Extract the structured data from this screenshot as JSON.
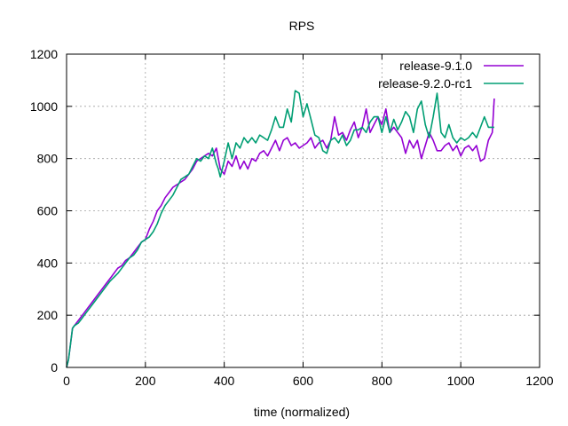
{
  "chart_data": {
    "type": "line",
    "title": "RPS",
    "xlabel": "time (normalized)",
    "ylabel": "",
    "xlim": [
      0,
      1200
    ],
    "ylim": [
      0,
      1200
    ],
    "xticks": [
      0,
      200,
      400,
      600,
      800,
      1000,
      1200
    ],
    "yticks": [
      0,
      200,
      400,
      600,
      800,
      1000,
      1200
    ],
    "xtick_labels": [
      "0",
      "200",
      "400",
      "600",
      "800",
      "1000",
      "1200"
    ],
    "ytick_labels": [
      "0",
      "200",
      "400",
      "600",
      "800",
      "1000",
      "1200"
    ],
    "grid": true,
    "legend_position": "top-right",
    "series": [
      {
        "name": "release-9.1.0",
        "color": "#9400d3",
        "x": [
          0,
          5,
          15,
          20,
          30,
          40,
          50,
          60,
          70,
          80,
          90,
          100,
          110,
          120,
          130,
          140,
          150,
          160,
          170,
          180,
          190,
          200,
          210,
          220,
          230,
          240,
          250,
          260,
          270,
          280,
          290,
          300,
          310,
          320,
          330,
          340,
          350,
          360,
          370,
          380,
          385,
          390,
          400,
          410,
          420,
          430,
          440,
          450,
          460,
          470,
          480,
          490,
          500,
          510,
          520,
          530,
          540,
          550,
          560,
          570,
          580,
          590,
          600,
          610,
          620,
          630,
          640,
          650,
          660,
          670,
          680,
          690,
          700,
          710,
          720,
          730,
          740,
          750,
          760,
          770,
          780,
          790,
          800,
          810,
          820,
          830,
          840,
          850,
          860,
          870,
          880,
          890,
          900,
          910,
          920,
          930,
          940,
          950,
          960,
          970,
          980,
          990,
          1000,
          1010,
          1020,
          1030,
          1040,
          1050,
          1060,
          1070,
          1080,
          1085
        ],
        "y": [
          0,
          30,
          150,
          160,
          180,
          200,
          220,
          240,
          260,
          280,
          300,
          320,
          340,
          360,
          380,
          390,
          410,
          420,
          440,
          460,
          480,
          490,
          530,
          560,
          600,
          620,
          650,
          670,
          690,
          700,
          710,
          720,
          740,
          760,
          790,
          800,
          810,
          820,
          810,
          840,
          800,
          760,
          740,
          790,
          770,
          810,
          760,
          790,
          760,
          800,
          790,
          820,
          830,
          810,
          840,
          870,
          830,
          870,
          880,
          850,
          860,
          840,
          850,
          860,
          880,
          840,
          860,
          870,
          840,
          870,
          960,
          890,
          900,
          870,
          910,
          940,
          880,
          920,
          990,
          900,
          930,
          960,
          930,
          990,
          900,
          920,
          900,
          880,
          820,
          870,
          840,
          870,
          800,
          850,
          900,
          870,
          830,
          830,
          850,
          860,
          830,
          850,
          810,
          840,
          850,
          830,
          850,
          790,
          800,
          870,
          900,
          1030
        ]
      },
      {
        "name": "release-9.2.0-rc1",
        "color": "#009e73",
        "x": [
          0,
          5,
          15,
          20,
          30,
          40,
          50,
          60,
          70,
          80,
          90,
          100,
          110,
          120,
          130,
          140,
          150,
          160,
          170,
          180,
          190,
          200,
          210,
          220,
          230,
          240,
          250,
          260,
          270,
          280,
          290,
          300,
          310,
          320,
          330,
          340,
          350,
          360,
          370,
          380,
          385,
          390,
          400,
          410,
          420,
          430,
          440,
          450,
          460,
          470,
          480,
          490,
          500,
          510,
          520,
          530,
          540,
          550,
          560,
          570,
          580,
          590,
          600,
          610,
          620,
          630,
          640,
          650,
          660,
          670,
          680,
          690,
          700,
          710,
          720,
          730,
          740,
          750,
          760,
          770,
          780,
          790,
          800,
          810,
          820,
          830,
          840,
          850,
          860,
          870,
          880,
          890,
          900,
          910,
          920,
          930,
          940,
          950,
          960,
          970,
          980,
          990,
          1000,
          1010,
          1020,
          1030,
          1040,
          1050,
          1060,
          1070,
          1080,
          1085
        ],
        "y": [
          0,
          30,
          150,
          160,
          170,
          190,
          210,
          230,
          250,
          270,
          290,
          310,
          330,
          345,
          360,
          380,
          400,
          420,
          430,
          450,
          480,
          490,
          500,
          520,
          550,
          590,
          620,
          640,
          660,
          690,
          720,
          730,
          740,
          770,
          800,
          790,
          810,
          800,
          840,
          780,
          760,
          730,
          790,
          860,
          800,
          860,
          840,
          880,
          860,
          880,
          860,
          890,
          880,
          870,
          910,
          960,
          920,
          920,
          990,
          940,
          1060,
          1050,
          960,
          1010,
          950,
          890,
          880,
          830,
          820,
          870,
          880,
          860,
          890,
          850,
          870,
          910,
          910,
          920,
          900,
          940,
          960,
          960,
          900,
          960,
          900,
          950,
          910,
          940,
          980,
          960,
          900,
          990,
          1020,
          930,
          880,
          960,
          1050,
          900,
          880,
          930,
          880,
          860,
          880,
          870,
          880,
          900,
          880,
          920,
          960,
          920,
          920,
          920
        ]
      }
    ]
  }
}
